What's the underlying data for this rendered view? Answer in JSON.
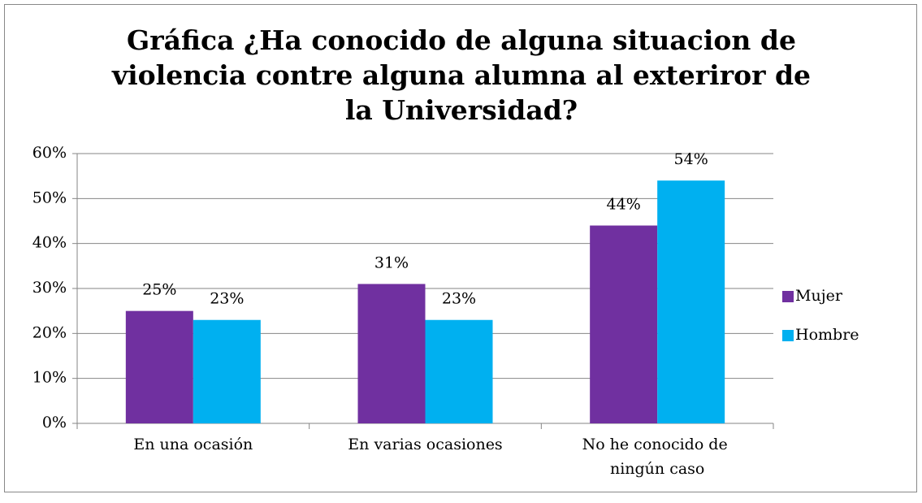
{
  "chart_data": {
    "type": "bar",
    "title": "Gráfica ¿Ha conocido de alguna situacion de violencia contre alguna alumna al exteriror de la Universidad?",
    "categories": [
      "En una ocasión",
      "En varias ocasiones",
      "No he conocido de ningún caso"
    ],
    "series": [
      {
        "name": "Mujer",
        "color": "#7030a0",
        "values": [
          25,
          31,
          44
        ],
        "value_labels": [
          "25%",
          "31%",
          "44%"
        ]
      },
      {
        "name": "Hombre",
        "color": "#00b0f0",
        "values": [
          23,
          23,
          54
        ],
        "value_labels": [
          "23%",
          "23%",
          "54%"
        ]
      }
    ],
    "ylim": [
      0,
      60
    ],
    "yticks": [
      {
        "value": 0,
        "label": "0%"
      },
      {
        "value": 10,
        "label": "10%"
      },
      {
        "value": 20,
        "label": "20%"
      },
      {
        "value": 30,
        "label": "30%"
      },
      {
        "value": 40,
        "label": "40%"
      },
      {
        "value": 50,
        "label": "50%"
      },
      {
        "value": 60,
        "label": "60%"
      }
    ],
    "grid": true,
    "legend": "right"
  }
}
